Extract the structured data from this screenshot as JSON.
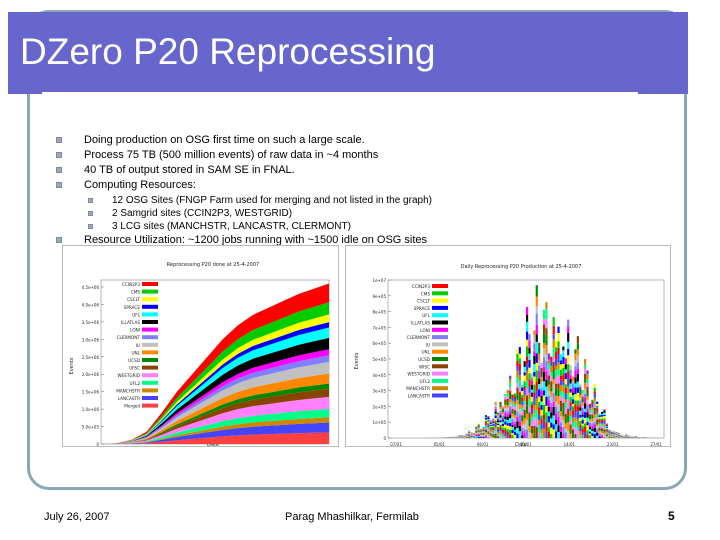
{
  "slide": {
    "title": "DZero P20 Reprocessing",
    "bullets": [
      "Doing production on OSG first time on such a large scale.",
      "Process 75 TB (500 million events) of raw data in ~4 months",
      "40 TB of output stored in SAM SE in FNAL.",
      "Computing Resources:"
    ],
    "sub_bullets": [
      "12 OSG Sites (FNGP Farm used for merging and not listed in the graph)",
      "2 Samgrid sites (CCIN2P3, WESTGRID)",
      "3 LCG sites (MANCHSTR, LANCASTR, CLERMONT)"
    ],
    "last_bullet": "Resource Utilization: ~1200 jobs running with ~1500 idle on OSG sites"
  },
  "chart_data": [
    {
      "type": "area",
      "title": "Reprocessing P20 done at 25-4-2007",
      "xlabel": "Date",
      "ylabel": "Events",
      "y_ticks": [
        "0",
        "5.0e+05",
        "1.0e+06",
        "1.5e+06",
        "2.0e+06",
        "2.5e+06",
        "3.0e+06",
        "3.5e+06",
        "4.0e+06",
        "4.5e+06"
      ],
      "x_ticks": [
        "27/01",
        "06/02",
        "16/02",
        "26/02",
        "08/03",
        "17/03",
        "27/03",
        "06/04",
        "16/04"
      ],
      "legend": [
        "CCIN2P3",
        "CMS",
        "CSCLT",
        "SPRACE",
        "UFL",
        "ILLATLAS",
        "LONI",
        "CLERMONT",
        "IU",
        "UNL",
        "UCSD",
        "UFSC",
        "WESTGRID",
        "UFL2",
        "MANCHSTR",
        "LANCASTR",
        "Merged"
      ],
      "colors": [
        "#ff0000",
        "#00cc00",
        "#ffff00",
        "#0000ff",
        "#00ffff",
        "#000000",
        "#ff00ff",
        "#8080ff",
        "#c0c0c0",
        "#ff8800",
        "#008800",
        "#884400",
        "#ff80ff",
        "#00ff88",
        "#cc8800",
        "#4444ff",
        "#ff4040"
      ],
      "cumulative_total": [
        0,
        0.02,
        0.12,
        0.35,
        0.9,
        1.5,
        2.0,
        2.5,
        3.0,
        3.4,
        3.7,
        3.9,
        4.1,
        4.3,
        4.45,
        4.6
      ],
      "ylim": [
        0,
        4.7
      ]
    },
    {
      "type": "bar",
      "title": "Daily Reprocessing P20 Production at 25-4-2007",
      "xlabel": "Date",
      "ylabel": "Events",
      "y_ticks": [
        "0",
        "1e+05",
        "2e+05",
        "3e+05",
        "4e+05",
        "5e+05",
        "6e+05",
        "7e+05",
        "8e+05",
        "9e+05",
        "1e+07"
      ],
      "x_ticks": [
        "07/01",
        "05/01",
        "06/01",
        "11/01",
        "14/01",
        "23/01",
        "27/01"
      ],
      "legend": [
        "CCIN2P3",
        "CMS",
        "CSCLT",
        "SPRACE",
        "UFL",
        "ILLATLAS",
        "LONI",
        "CLERMONT",
        "IU",
        "UNL",
        "UCSD",
        "WISC",
        "WESTGRID",
        "UFL2",
        "MANCHSTR",
        "LANCASTR"
      ],
      "colors": [
        "#ff0000",
        "#00cc00",
        "#ffff00",
        "#0000ff",
        "#00ffff",
        "#000000",
        "#ff00ff",
        "#8080ff",
        "#c0c0c0",
        "#ff8800",
        "#008800",
        "#884400",
        "#ff80ff",
        "#00ff88",
        "#cc8800",
        "#4444ff"
      ]
    }
  ],
  "footer": {
    "date": "July 26, 2007",
    "author": "Parag Mhashilkar, Fermilab",
    "page": "5"
  }
}
